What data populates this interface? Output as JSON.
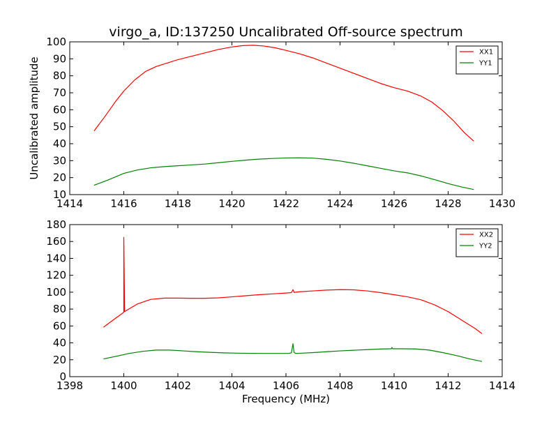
{
  "chart_data": [
    {
      "type": "line",
      "title": "virgo_a, ID:137250 Uncalibrated Off-source spectrum",
      "xlabel": "",
      "ylabel": "Uncalibrated amplitude",
      "xlim": [
        1414,
        1430
      ],
      "ylim": [
        10,
        100
      ],
      "xticks": [
        1414,
        1416,
        1418,
        1420,
        1422,
        1424,
        1426,
        1428,
        1430
      ],
      "yticks": [
        10,
        20,
        30,
        40,
        50,
        60,
        70,
        80,
        90,
        100
      ],
      "legend": "top-right",
      "grid": false,
      "series": [
        {
          "name": "XX1",
          "color": "#ff0000",
          "x": [
            1414.9,
            1415.3,
            1415.7,
            1416.0,
            1416.4,
            1416.8,
            1417.2,
            1417.6,
            1418.0,
            1418.5,
            1419.0,
            1419.5,
            1420.0,
            1420.4,
            1420.8,
            1421.2,
            1421.6,
            1422.0,
            1422.5,
            1423.0,
            1423.5,
            1424.0,
            1424.5,
            1425.0,
            1425.5,
            1426.0,
            1426.5,
            1427.0,
            1427.4,
            1427.8,
            1428.2,
            1428.6,
            1428.95
          ],
          "y": [
            47.5,
            56,
            65,
            71,
            77.5,
            82.5,
            85.5,
            87.5,
            89.5,
            91.5,
            93.5,
            95.5,
            97,
            97.8,
            98,
            97.5,
            96.5,
            95,
            93,
            90.5,
            87.5,
            84.5,
            81.5,
            78.5,
            75.5,
            73,
            71,
            68,
            64.5,
            59.5,
            53.5,
            46.5,
            41.5
          ]
        },
        {
          "name": "YY1",
          "color": "#008000",
          "x": [
            1414.9,
            1415.4,
            1416.0,
            1416.5,
            1417.0,
            1417.5,
            1418.0,
            1418.5,
            1419.0,
            1419.5,
            1420.0,
            1420.5,
            1421.0,
            1421.5,
            1422.0,
            1422.5,
            1423.0,
            1423.5,
            1424.0,
            1424.5,
            1425.0,
            1425.5,
            1426.0,
            1426.5,
            1427.0,
            1427.5,
            1428.0,
            1428.5,
            1428.95
          ],
          "y": [
            15.5,
            18.5,
            22.5,
            24.5,
            25.8,
            26.5,
            27,
            27.5,
            28,
            28.8,
            29.6,
            30.3,
            30.9,
            31.3,
            31.6,
            31.7,
            31.5,
            30.8,
            29.8,
            28.5,
            27,
            25.5,
            24,
            22.8,
            21,
            18.8,
            16.5,
            14.5,
            13
          ]
        }
      ]
    },
    {
      "type": "line",
      "title": "",
      "xlabel": "Frequency (MHz)",
      "ylabel": "",
      "xlim": [
        1398,
        1414
      ],
      "ylim": [
        0,
        180
      ],
      "xticks": [
        1398,
        1400,
        1402,
        1404,
        1406,
        1408,
        1410,
        1412,
        1414
      ],
      "yticks": [
        0,
        20,
        40,
        60,
        80,
        100,
        120,
        140,
        160,
        180
      ],
      "legend": "top-right",
      "grid": false,
      "series": [
        {
          "name": "XX2",
          "color": "#ff0000",
          "x": [
            1399.25,
            1399.6,
            1399.95,
            1400.0,
            1400.0,
            1400.03,
            1400.08,
            1400.5,
            1401.0,
            1401.5,
            1402.0,
            1402.5,
            1403.0,
            1403.5,
            1404.0,
            1404.5,
            1405.0,
            1405.5,
            1406.0,
            1406.2,
            1406.26,
            1406.3,
            1406.36,
            1406.5,
            1407.0,
            1407.5,
            1408.0,
            1408.5,
            1409.0,
            1409.5,
            1410.0,
            1410.5,
            1411.0,
            1411.5,
            1412.0,
            1412.5,
            1413.0,
            1413.25
          ],
          "y": [
            58.5,
            67,
            75,
            76.5,
            165,
            77,
            78,
            86,
            91.5,
            93,
            93,
            92.8,
            92.8,
            93.3,
            94.5,
            95.8,
            97,
            98,
            99,
            99.5,
            103,
            99.8,
            100,
            100.5,
            101.5,
            102.5,
            103,
            102.8,
            101.5,
            99.5,
            97,
            94.5,
            91,
            85,
            77,
            67,
            57,
            51
          ]
        },
        {
          "name": "YY2",
          "color": "#008000",
          "x": [
            1399.25,
            1399.7,
            1400.2,
            1400.7,
            1401.2,
            1401.7,
            1402.2,
            1402.7,
            1403.2,
            1403.7,
            1404.2,
            1404.7,
            1405.2,
            1405.7,
            1406.1,
            1406.2,
            1406.26,
            1406.3,
            1406.36,
            1406.6,
            1407.0,
            1407.5,
            1408.0,
            1408.5,
            1409.0,
            1409.5,
            1409.9,
            1409.92,
            1409.95,
            1410.3,
            1410.8,
            1411.3,
            1411.8,
            1412.3,
            1412.8,
            1413.25
          ],
          "y": [
            21,
            24,
            27.5,
            30,
            31.5,
            31.5,
            30.5,
            29.5,
            28.8,
            28.2,
            27.8,
            27.6,
            27.5,
            27.5,
            27.5,
            28.2,
            39,
            28.5,
            27.5,
            27.8,
            28.5,
            29.5,
            30.5,
            31.3,
            32,
            32.7,
            33,
            34.5,
            33,
            33,
            32.8,
            31.5,
            28.5,
            25,
            21,
            18
          ]
        }
      ]
    }
  ]
}
